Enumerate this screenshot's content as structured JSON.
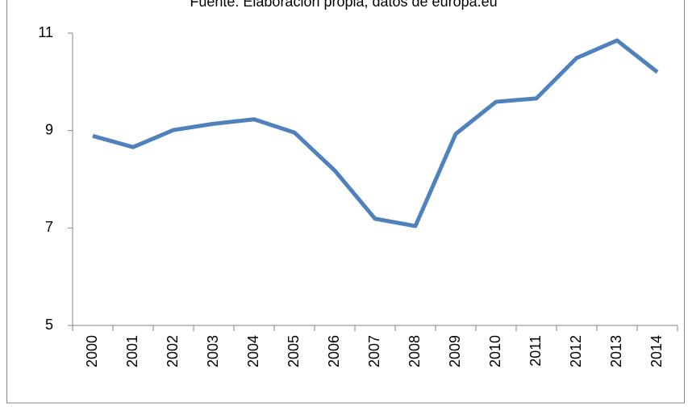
{
  "chart_data": {
    "type": "line",
    "title": "Fuente: Elaboración propia, datos de europa.eu",
    "categories": [
      "2000",
      "2001",
      "2002",
      "2003",
      "2004",
      "2005",
      "2006",
      "2007",
      "2008",
      "2009",
      "2010",
      "2011",
      "2012",
      "2013",
      "2014"
    ],
    "values": [
      8.89,
      8.66,
      9.01,
      9.14,
      9.23,
      8.96,
      8.18,
      7.19,
      7.04,
      8.93,
      9.59,
      9.66,
      10.49,
      10.85,
      10.2
    ],
    "color": "#4f81bd",
    "ylim": [
      5,
      11
    ],
    "yticks": [
      5,
      7,
      9,
      11
    ],
    "grid": false
  }
}
